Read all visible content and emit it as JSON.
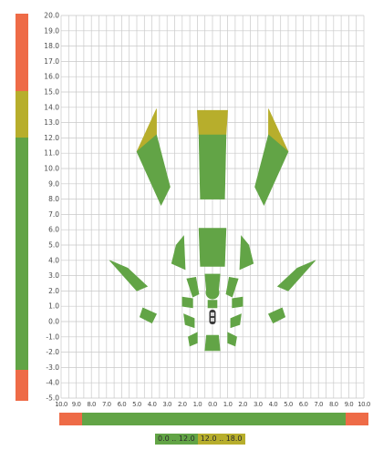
{
  "window": {
    "title": ""
  },
  "colors": {
    "green": "#62a446",
    "yellow": "#b7ae2c",
    "red": "#ee6b47",
    "grid": "#c9c9c9",
    "axis_text": "#4a4a4a"
  },
  "y_axis": {
    "labels": [
      "20.0",
      "19.0",
      "18.0",
      "17.0",
      "16.0",
      "15.0",
      "14.0",
      "13.0",
      "12.0",
      "11.0",
      "10.0",
      "9.0",
      "8.0",
      "7.0",
      "6.0",
      "5.0",
      "4.0",
      "3.0",
      "2.0",
      "1.0",
      "0.0",
      "-1.0",
      "-2.0",
      "-3.0",
      "-4.0",
      "-5.0"
    ]
  },
  "x_axis": {
    "labels": [
      "10.0",
      "9.0",
      "8.0",
      "7.0",
      "6.0",
      "5.0",
      "4.0",
      "3.0",
      "2.0",
      "1.0",
      "0.0",
      "1.0",
      "2.0",
      "3.0",
      "4.0",
      "5.0",
      "6.0",
      "7.0",
      "8.0",
      "9.0",
      "10.0"
    ]
  },
  "vertical_scale_bar": {
    "segments": [
      {
        "from": 15,
        "to": 20,
        "color": "red"
      },
      {
        "from": 12,
        "to": 15,
        "color": "yellow"
      },
      {
        "from": -3,
        "to": 12,
        "color": "green"
      },
      {
        "from": -5,
        "to": -3,
        "color": "red"
      }
    ]
  },
  "horizontal_scale_bar": {
    "segments": [
      {
        "from": -10,
        "to": -8.5,
        "color": "red"
      },
      {
        "from": -8.5,
        "to": 8.5,
        "color": "green"
      },
      {
        "from": 8.5,
        "to": 10,
        "color": "red"
      }
    ]
  },
  "legend": {
    "items": [
      {
        "label": "0.0 .. 12.0",
        "color": "green"
      },
      {
        "label": "12.0 .. 18.0",
        "color": "yellow"
      }
    ]
  },
  "detection_zones": [
    {
      "points": [
        [
          -0.9,
          12.2
        ],
        [
          0.9,
          12.2
        ],
        [
          1,
          13.8
        ],
        [
          -1,
          13.8
        ]
      ],
      "color": "yellow"
    },
    {
      "points": [
        [
          -0.8,
          8
        ],
        [
          0.8,
          8
        ],
        [
          0.9,
          12.2
        ],
        [
          -0.9,
          12.2
        ]
      ],
      "color": "green"
    },
    {
      "points": [
        [
          -5,
          11.1
        ],
        [
          -3.7,
          12.2
        ],
        [
          -3.7,
          13.9
        ]
      ],
      "color": "yellow"
    },
    {
      "points": [
        [
          -5,
          11.1
        ],
        [
          -3.7,
          12.2
        ],
        [
          -2.8,
          8.8
        ],
        [
          -3.4,
          7.6
        ]
      ],
      "color": "green"
    },
    {
      "points": [
        [
          5,
          11.1
        ],
        [
          3.7,
          12.2
        ],
        [
          3.7,
          13.9
        ]
      ],
      "color": "yellow"
    },
    {
      "points": [
        [
          5,
          11.1
        ],
        [
          3.7,
          12.2
        ],
        [
          2.8,
          8.8
        ],
        [
          3.4,
          7.6
        ]
      ],
      "color": "green"
    },
    {
      "points": [
        [
          -0.9,
          6.1
        ],
        [
          0.9,
          6.1
        ],
        [
          0.8,
          3.6
        ],
        [
          -0.8,
          3.6
        ]
      ],
      "color": "green"
    },
    {
      "points": [
        [
          -2.7,
          3.8
        ],
        [
          -1.8,
          3.4
        ],
        [
          -1.9,
          5.6
        ],
        [
          -2.4,
          5.0
        ]
      ],
      "color": "green"
    },
    {
      "points": [
        [
          2.7,
          3.8
        ],
        [
          1.8,
          3.4
        ],
        [
          1.9,
          5.6
        ],
        [
          2.4,
          5.0
        ]
      ],
      "color": "green"
    },
    {
      "points": [
        [
          -6.8,
          4.0
        ],
        [
          -5.6,
          3.5
        ],
        [
          -4.3,
          2.3
        ],
        [
          -5.0,
          2.0
        ]
      ],
      "color": "green"
    },
    {
      "points": [
        [
          6.8,
          4.0
        ],
        [
          5.6,
          3.5
        ],
        [
          4.3,
          2.3
        ],
        [
          5.0,
          2.0
        ]
      ],
      "color": "green"
    },
    {
      "points": [
        [
          -0.5,
          3.1
        ],
        [
          0.5,
          3.1
        ],
        [
          0.4,
          2.0
        ],
        [
          -0.4,
          2.0
        ]
      ],
      "color": "green"
    },
    {
      "points": [
        [
          -1.7,
          2.8
        ],
        [
          -1.1,
          2.9
        ],
        [
          -0.9,
          1.8
        ],
        [
          -1.3,
          1.6
        ]
      ],
      "color": "green"
    },
    {
      "points": [
        [
          1.7,
          2.8
        ],
        [
          1.1,
          2.9
        ],
        [
          0.9,
          1.8
        ],
        [
          1.3,
          1.6
        ]
      ],
      "color": "green"
    },
    {
      "points": [
        [
          -2.0,
          1.6
        ],
        [
          -1.3,
          1.5
        ],
        [
          -1.3,
          0.9
        ],
        [
          -2.0,
          1.0
        ]
      ],
      "color": "green"
    },
    {
      "points": [
        [
          2.0,
          1.6
        ],
        [
          1.3,
          1.5
        ],
        [
          1.3,
          0.9
        ],
        [
          2.0,
          1.0
        ]
      ],
      "color": "green"
    },
    {
      "points": [
        [
          -4.6,
          0.9
        ],
        [
          -3.7,
          0.5
        ],
        [
          -4.0,
          -0.1
        ],
        [
          -4.8,
          0.3
        ]
      ],
      "color": "green"
    },
    {
      "points": [
        [
          4.6,
          0.9
        ],
        [
          3.7,
          0.5
        ],
        [
          4.0,
          -0.1
        ],
        [
          4.8,
          0.3
        ]
      ],
      "color": "green"
    },
    {
      "points": [
        [
          -1.9,
          0.5
        ],
        [
          -1.2,
          0.2
        ],
        [
          -1.2,
          -0.4
        ],
        [
          -1.8,
          -0.2
        ]
      ],
      "color": "green"
    },
    {
      "points": [
        [
          1.9,
          0.5
        ],
        [
          1.2,
          0.2
        ],
        [
          1.2,
          -0.4
        ],
        [
          1.8,
          -0.2
        ]
      ],
      "color": "green"
    },
    {
      "points": [
        [
          -1.6,
          -1.0
        ],
        [
          -1.0,
          -0.7
        ],
        [
          -1.0,
          -1.4
        ],
        [
          -1.5,
          -1.6
        ]
      ],
      "color": "green"
    },
    {
      "points": [
        [
          1.6,
          -1.0
        ],
        [
          1.0,
          -0.7
        ],
        [
          1.0,
          -1.4
        ],
        [
          1.5,
          -1.6
        ]
      ],
      "color": "green"
    },
    {
      "points": [
        [
          -0.4,
          -0.9
        ],
        [
          0.4,
          -0.9
        ],
        [
          0.5,
          -1.9
        ],
        [
          -0.5,
          -1.9
        ]
      ],
      "color": "green"
    },
    {
      "points": [
        [
          -0.3,
          1.4
        ],
        [
          0.3,
          1.4
        ],
        [
          0.3,
          0.9
        ],
        [
          -0.3,
          0.9
        ]
      ],
      "color": "green"
    }
  ],
  "sensor_circle": {
    "x": 0,
    "y": 1.9,
    "r": 0.45,
    "color": "green"
  },
  "vehicle_marker": {
    "x": 0,
    "y": 0.3
  }
}
